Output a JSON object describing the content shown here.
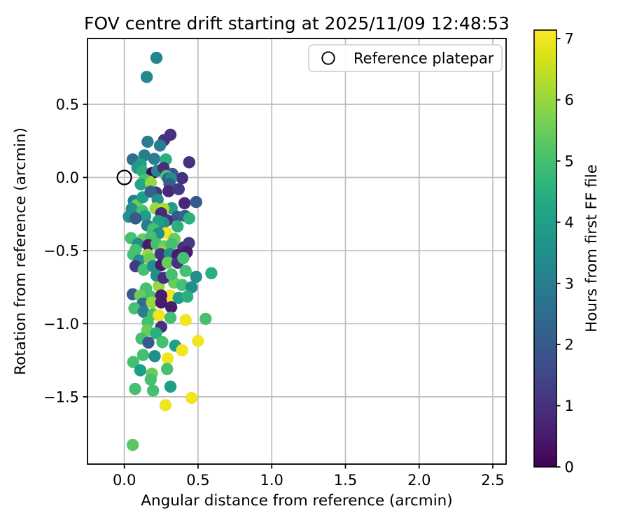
{
  "title": "FOV centre drift starting at 2025/11/09 12:48:53",
  "chart_data": {
    "type": "scatter",
    "title": "FOV centre drift starting at 2025/11/09 12:48:53",
    "xlabel": "Angular distance from reference (arcmin)",
    "ylabel": "Rotation from reference (arcmin)",
    "colorbar_label": "Hours from first FF file",
    "xlim": [
      -0.25,
      2.59
    ],
    "ylim": [
      -1.96,
      0.95
    ],
    "xticks": {
      "values": [
        0.0,
        0.5,
        1.0,
        1.5,
        2.0,
        2.5
      ],
      "labels": [
        "0.0",
        "0.5",
        "1.0",
        "1.5",
        "2.0",
        "2.5"
      ]
    },
    "yticks": {
      "values": [
        0.5,
        0.0,
        -0.5,
        -1.0,
        -1.5
      ],
      "labels": [
        "0.5",
        "0.0",
        "−0.5",
        "−1.0",
        "−1.5"
      ]
    },
    "grid": true,
    "grid_color": "#bdbdbd",
    "legend": {
      "label": "Reference platepar",
      "position": "upper right"
    },
    "reference_point": {
      "x": 0.0,
      "y": 0.0
    },
    "colormap": "viridis",
    "color_range": [
      0,
      7.14
    ],
    "colorbar_ticks": [
      0,
      1,
      2,
      3,
      4,
      5,
      6,
      7
    ],
    "colormap_stops": [
      [
        0.0,
        "#440154"
      ],
      [
        0.0625,
        "#48186a"
      ],
      [
        0.125,
        "#472d7b"
      ],
      [
        0.1875,
        "#424086"
      ],
      [
        0.25,
        "#3b528b"
      ],
      [
        0.3125,
        "#33638d"
      ],
      [
        0.375,
        "#2c728e"
      ],
      [
        0.4375,
        "#26828e"
      ],
      [
        0.5,
        "#21918c"
      ],
      [
        0.5625,
        "#1fa088"
      ],
      [
        0.625,
        "#28ae80"
      ],
      [
        0.6875,
        "#3fbc73"
      ],
      [
        0.75,
        "#5ec962"
      ],
      [
        0.8125,
        "#84d44b"
      ],
      [
        0.875,
        "#addc30"
      ],
      [
        0.9375,
        "#d8e219"
      ],
      [
        1.0,
        "#fde725"
      ]
    ],
    "points_format": [
      "angular_distance_arcmin",
      "rotation_arcmin",
      "hours_from_first_ff"
    ],
    "points": [
      [
        0.218,
        0.818,
        3.2
      ],
      [
        0.152,
        0.687,
        3.3
      ],
      [
        0.313,
        0.292,
        1.0
      ],
      [
        0.269,
        0.255,
        1.0
      ],
      [
        0.158,
        0.244,
        3.0
      ],
      [
        0.242,
        0.218,
        3.0
      ],
      [
        0.136,
        0.151,
        3.0
      ],
      [
        0.057,
        0.123,
        2.5
      ],
      [
        0.203,
        0.127,
        3.0
      ],
      [
        0.282,
        0.123,
        4.5
      ],
      [
        0.111,
        0.091,
        4.0
      ],
      [
        0.44,
        0.104,
        1.0
      ],
      [
        0.088,
        0.066,
        3.8
      ],
      [
        0.123,
        0.043,
        4.5
      ],
      [
        0.19,
        0.03,
        0.1
      ],
      [
        0.222,
        0.045,
        3.2
      ],
      [
        0.266,
        0.064,
        0.9
      ],
      [
        0.326,
        0.024,
        2.0
      ],
      [
        0.285,
        0.01,
        5.0
      ],
      [
        0.298,
        -0.008,
        2.0
      ],
      [
        0.392,
        -0.005,
        1.0
      ],
      [
        0.317,
        -0.008,
        3.5
      ],
      [
        0.168,
        -0.028,
        6.2
      ],
      [
        0.14,
        -0.016,
        5.0
      ],
      [
        0.306,
        -0.045,
        2.2
      ],
      [
        0.112,
        -0.048,
        4.2
      ],
      [
        0.18,
        -0.037,
        6.0
      ],
      [
        0.215,
        -0.104,
        1.0
      ],
      [
        0.3,
        -0.094,
        0.8
      ],
      [
        0.369,
        -0.08,
        1.2
      ],
      [
        0.064,
        -0.16,
        3.0
      ],
      [
        0.084,
        -0.189,
        5.5
      ],
      [
        0.05,
        -0.215,
        3.5
      ],
      [
        0.03,
        -0.268,
        3.5
      ],
      [
        0.124,
        -0.136,
        4.0
      ],
      [
        0.178,
        -0.098,
        2.2
      ],
      [
        0.226,
        -0.152,
        3.5
      ],
      [
        0.408,
        -0.176,
        0.8
      ],
      [
        0.487,
        -0.168,
        2.0
      ],
      [
        0.321,
        -0.21,
        4.0
      ],
      [
        0.211,
        -0.212,
        6.0
      ],
      [
        0.265,
        -0.215,
        6.3
      ],
      [
        0.123,
        -0.229,
        5.0
      ],
      [
        0.142,
        -0.264,
        4.0
      ],
      [
        0.076,
        -0.28,
        2.0
      ],
      [
        0.25,
        -0.245,
        0.8
      ],
      [
        0.359,
        -0.268,
        2.0
      ],
      [
        0.411,
        -0.263,
        2.2
      ],
      [
        0.44,
        -0.28,
        4.5
      ],
      [
        0.29,
        -0.293,
        1.0
      ],
      [
        0.266,
        -0.311,
        3.5
      ],
      [
        0.361,
        -0.335,
        4.5
      ],
      [
        0.155,
        -0.328,
        3.0
      ],
      [
        0.23,
        -0.298,
        4.0
      ],
      [
        0.195,
        -0.352,
        5.0
      ],
      [
        0.285,
        -0.38,
        7.0
      ],
      [
        0.231,
        -0.383,
        3.5
      ],
      [
        0.045,
        -0.415,
        5.0
      ],
      [
        0.124,
        -0.423,
        5.5
      ],
      [
        0.179,
        -0.407,
        5.0
      ],
      [
        0.34,
        -0.42,
        5.5
      ],
      [
        0.092,
        -0.455,
        3.5
      ],
      [
        0.163,
        -0.463,
        0.5
      ],
      [
        0.218,
        -0.455,
        5.0
      ],
      [
        0.269,
        -0.471,
        5.5
      ],
      [
        0.321,
        -0.455,
        5.0
      ],
      [
        0.4,
        -0.479,
        1.0
      ],
      [
        0.438,
        -0.449,
        1.2
      ],
      [
        0.424,
        -0.511,
        0.5
      ],
      [
        0.258,
        -0.511,
        6.0
      ],
      [
        0.076,
        -0.495,
        5.0
      ],
      [
        0.06,
        -0.527,
        5.0
      ],
      [
        0.16,
        -0.53,
        6.0
      ],
      [
        0.245,
        -0.524,
        1.0
      ],
      [
        0.308,
        -0.524,
        3.5
      ],
      [
        0.361,
        -0.53,
        0.5
      ],
      [
        0.1,
        -0.567,
        3.5
      ],
      [
        0.171,
        -0.556,
        5.5
      ],
      [
        0.076,
        -0.607,
        1.2
      ],
      [
        0.131,
        -0.631,
        5.0
      ],
      [
        0.195,
        -0.607,
        3.5
      ],
      [
        0.25,
        -0.599,
        0.5
      ],
      [
        0.294,
        -0.583,
        5.5
      ],
      [
        0.361,
        -0.583,
        1.0
      ],
      [
        0.4,
        -0.551,
        5.0
      ],
      [
        0.416,
        -0.64,
        5.0
      ],
      [
        0.487,
        -0.679,
        3.5
      ],
      [
        0.59,
        -0.655,
        4.5
      ],
      [
        0.337,
        -0.719,
        5.5
      ],
      [
        0.392,
        -0.735,
        5.0
      ],
      [
        0.456,
        -0.751,
        3.5
      ],
      [
        0.234,
        -0.743,
        6.0
      ],
      [
        0.147,
        -0.759,
        5.0
      ],
      [
        0.218,
        -0.671,
        3.5
      ],
      [
        0.266,
        -0.687,
        0.9
      ],
      [
        0.321,
        -0.663,
        5.0
      ],
      [
        0.057,
        -0.799,
        2.0
      ],
      [
        0.108,
        -0.807,
        5.5
      ],
      [
        0.179,
        -0.815,
        5.0
      ],
      [
        0.31,
        -0.807,
        7.0
      ],
      [
        0.25,
        -0.807,
        0.5
      ],
      [
        0.369,
        -0.823,
        4.0
      ],
      [
        0.427,
        -0.815,
        4.5
      ],
      [
        0.124,
        -0.863,
        2.5
      ],
      [
        0.187,
        -0.855,
        6.0
      ],
      [
        0.25,
        -0.855,
        0.5
      ],
      [
        0.318,
        -0.887,
        0.5
      ],
      [
        0.068,
        -0.895,
        5.0
      ],
      [
        0.131,
        -0.919,
        3.0
      ],
      [
        0.195,
        -0.935,
        5.0
      ],
      [
        0.234,
        -0.943,
        7.0
      ],
      [
        0.313,
        -0.959,
        5.0
      ],
      [
        0.416,
        -0.975,
        7.0
      ],
      [
        0.551,
        -0.967,
        5.0
      ],
      [
        0.159,
        -0.991,
        5.0
      ],
      [
        0.25,
        -1.022,
        1.0
      ],
      [
        0.155,
        -1.046,
        5.5
      ],
      [
        0.215,
        -1.065,
        4.5
      ],
      [
        0.116,
        -1.102,
        5.0
      ],
      [
        0.163,
        -1.129,
        2.0
      ],
      [
        0.258,
        -1.126,
        5.0
      ],
      [
        0.345,
        -1.15,
        4.0
      ],
      [
        0.392,
        -1.182,
        7.0
      ],
      [
        0.5,
        -1.118,
        7.0
      ],
      [
        0.127,
        -1.214,
        5.0
      ],
      [
        0.06,
        -1.262,
        5.0
      ],
      [
        0.206,
        -1.222,
        3.5
      ],
      [
        0.294,
        -1.238,
        7.0
      ],
      [
        0.108,
        -1.318,
        4.0
      ],
      [
        0.187,
        -1.342,
        5.5
      ],
      [
        0.29,
        -1.31,
        5.0
      ],
      [
        0.179,
        -1.382,
        5.0
      ],
      [
        0.313,
        -1.43,
        4.0
      ],
      [
        0.073,
        -1.446,
        5.0
      ],
      [
        0.195,
        -1.458,
        5.0
      ],
      [
        0.456,
        -1.507,
        7.0
      ],
      [
        0.279,
        -1.557,
        7.0
      ],
      [
        0.057,
        -1.829,
        5.3
      ]
    ]
  }
}
